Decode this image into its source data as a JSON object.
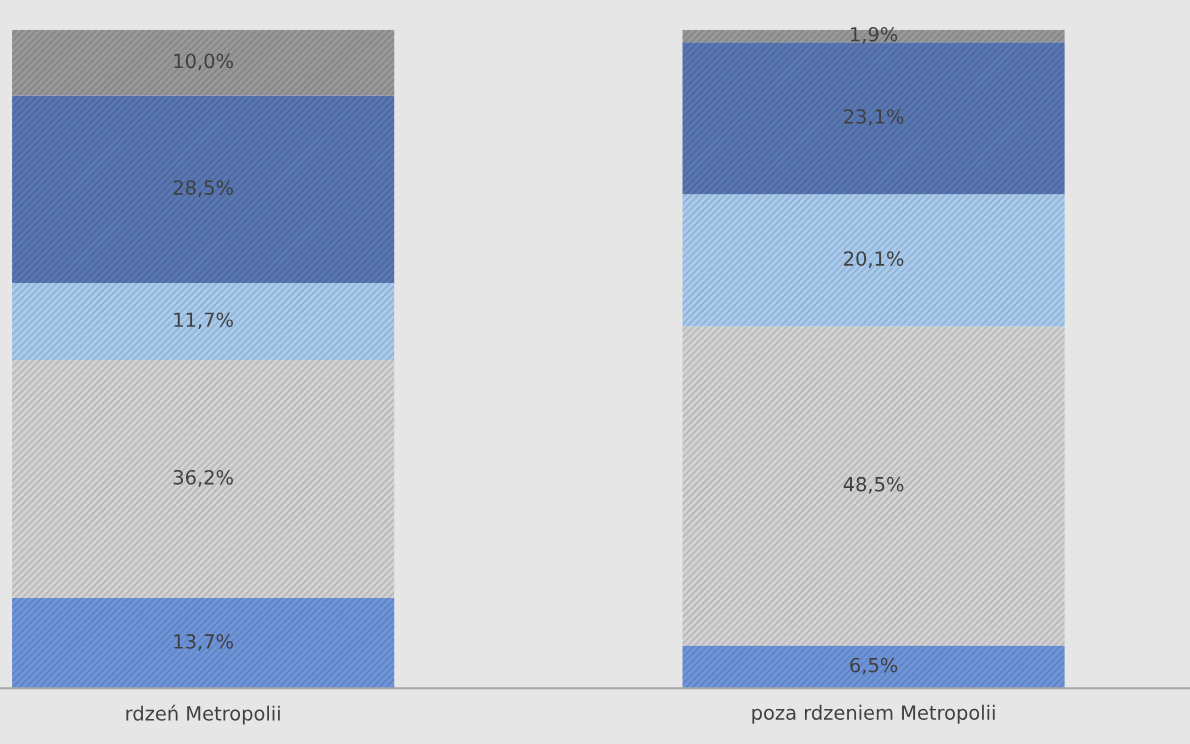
{
  "chart_data": {
    "type": "bar",
    "stacked": true,
    "categories": [
      "rdzeń Metropolii",
      "poza rdzeniem Metropolii"
    ],
    "series": [
      {
        "color": "#6f96dc",
        "values": [
          13.7,
          6.5
        ],
        "value_labels": [
          "13,7%",
          "6,5%"
        ]
      },
      {
        "color": "#d4d4d4",
        "values": [
          36.2,
          48.5
        ],
        "value_labels": [
          "36,2%",
          "48,5%"
        ]
      },
      {
        "color": "#a9cdf0",
        "values": [
          11.7,
          20.1
        ],
        "value_labels": [
          "11,7%",
          "20,1%"
        ]
      },
      {
        "color": "#5a78b4",
        "values": [
          28.5,
          23.1
        ],
        "value_labels": [
          "28,5%",
          "23,1%"
        ]
      },
      {
        "color": "#9a9a9a",
        "values": [
          10.0,
          1.9
        ],
        "value_labels": [
          "10,0%",
          "1,9%"
        ]
      }
    ],
    "grid": false,
    "legend": false
  }
}
